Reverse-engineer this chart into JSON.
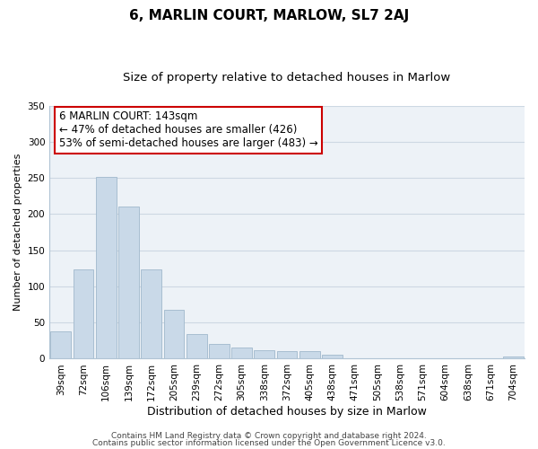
{
  "title": "6, MARLIN COURT, MARLOW, SL7 2AJ",
  "subtitle": "Size of property relative to detached houses in Marlow",
  "xlabel": "Distribution of detached houses by size in Marlow",
  "ylabel": "Number of detached properties",
  "bar_labels": [
    "39sqm",
    "72sqm",
    "106sqm",
    "139sqm",
    "172sqm",
    "205sqm",
    "239sqm",
    "272sqm",
    "305sqm",
    "338sqm",
    "372sqm",
    "405sqm",
    "438sqm",
    "471sqm",
    "505sqm",
    "538sqm",
    "571sqm",
    "604sqm",
    "638sqm",
    "671sqm",
    "704sqm"
  ],
  "bar_values": [
    38,
    124,
    252,
    211,
    124,
    68,
    34,
    20,
    16,
    12,
    10,
    10,
    5,
    1,
    0,
    0,
    0,
    0,
    0,
    0,
    3
  ],
  "bar_color": "#c9d9e8",
  "bar_edge_color": "#a0b8cc",
  "annotation_line1": "6 MARLIN COURT: 143sqm",
  "annotation_line2": "← 47% of detached houses are smaller (426)",
  "annotation_line3": "53% of semi-detached houses are larger (483) →",
  "annotation_box_color": "white",
  "annotation_box_edge_color": "#cc0000",
  "ylim": [
    0,
    350
  ],
  "yticks": [
    0,
    50,
    100,
    150,
    200,
    250,
    300,
    350
  ],
  "grid_color": "#cdd8e3",
  "background_color": "#edf2f7",
  "footer_line1": "Contains HM Land Registry data © Crown copyright and database right 2024.",
  "footer_line2": "Contains public sector information licensed under the Open Government Licence v3.0.",
  "title_fontsize": 11,
  "subtitle_fontsize": 9.5,
  "xlabel_fontsize": 9,
  "ylabel_fontsize": 8,
  "tick_fontsize": 7.5,
  "annotation_fontsize": 8.5,
  "footer_fontsize": 6.5
}
